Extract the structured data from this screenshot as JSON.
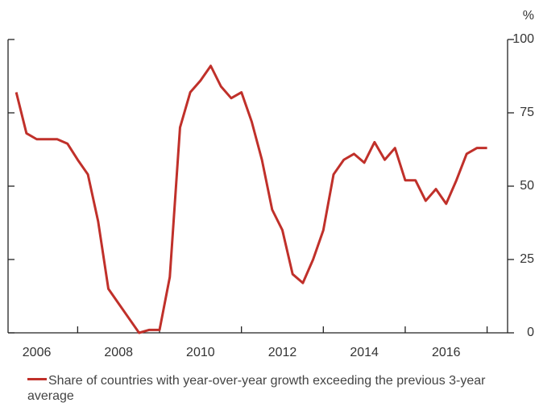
{
  "chart_data": {
    "type": "line",
    "unit": "%",
    "x": [
      2005.5,
      2005.75,
      2006,
      2006.25,
      2006.5,
      2006.75,
      2007,
      2007.25,
      2007.5,
      2007.75,
      2008,
      2008.25,
      2008.5,
      2008.75,
      2009,
      2009.25,
      2009.5,
      2009.75,
      2010,
      2010.25,
      2010.5,
      2010.75,
      2011,
      2011.25,
      2011.5,
      2011.75,
      2012,
      2012.25,
      2012.5,
      2012.75,
      2013,
      2013.25,
      2013.5,
      2013.75,
      2014,
      2014.25,
      2014.5,
      2014.75,
      2015,
      2015.25,
      2015.5,
      2015.75,
      2016,
      2016.25,
      2016.5,
      2016.75,
      2017
    ],
    "series": [
      {
        "name": "Share of countries with year-over-year growth exceeding the previous 3-year average",
        "color": "#c0302a",
        "values": [
          82,
          68,
          66,
          66,
          66,
          64.5,
          59,
          54,
          38,
          15,
          10,
          5,
          0,
          1,
          1,
          19,
          70,
          82,
          86,
          91,
          84,
          80,
          82,
          72,
          59,
          42,
          35,
          20,
          17,
          25,
          35,
          54,
          59,
          61,
          58,
          65,
          59,
          63,
          52,
          52,
          45,
          49,
          44,
          52,
          61,
          63,
          63
        ]
      }
    ],
    "xlim": [
      2005.3,
      2017.5
    ],
    "xticks": [
      {
        "value": 2006,
        "label": "2006"
      },
      {
        "value": 2008,
        "label": "2008"
      },
      {
        "value": 2010,
        "label": "2010"
      },
      {
        "value": 2012,
        "label": "2012"
      },
      {
        "value": 2014,
        "label": "2014"
      },
      {
        "value": 2016,
        "label": "2016"
      }
    ],
    "xminorticks": [
      2007,
      2009,
      2011,
      2013,
      2015,
      2017
    ],
    "ylim": [
      0,
      100
    ],
    "yticks": [
      0,
      25,
      50,
      75,
      100
    ]
  }
}
